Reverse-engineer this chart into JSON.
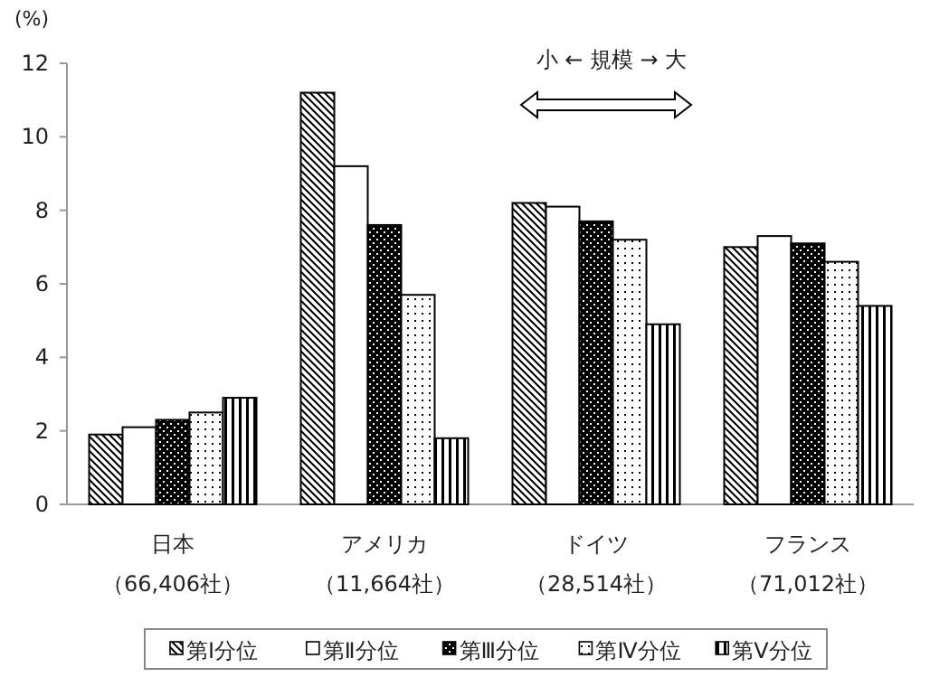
{
  "chart_data": {
    "type": "bar",
    "ylabel": "(%)",
    "categories": [
      "日本（66,406社）",
      "アメリカ（11,664社）",
      "ドイツ（28,514社）",
      "フランス（71,012社）"
    ],
    "series": [
      {
        "name": "第Ⅰ分位",
        "color": "#000000",
        "values": [
          1.9,
          11.2,
          8.2,
          7.0
        ]
      },
      {
        "name": "第Ⅱ分位",
        "color": "#000000",
        "values": [
          2.1,
          9.2,
          8.1,
          7.3
        ]
      },
      {
        "name": "第Ⅲ分位",
        "color": "#000000",
        "values": [
          2.3,
          7.6,
          7.7,
          7.1
        ]
      },
      {
        "name": "第Ⅳ分位",
        "color": "#000000",
        "values": [
          2.5,
          5.7,
          7.2,
          6.6
        ]
      },
      {
        "name": "第Ⅴ分位",
        "color": "#000000",
        "values": [
          2.9,
          1.8,
          4.9,
          5.4
        ]
      }
    ],
    "ylim": [
      0,
      12
    ],
    "yticks": [
      0,
      2,
      4,
      6,
      8,
      10,
      12
    ],
    "grid": false,
    "legend": "bottom",
    "annotations": [
      "小 ← 規模 → 大"
    ]
  }
}
